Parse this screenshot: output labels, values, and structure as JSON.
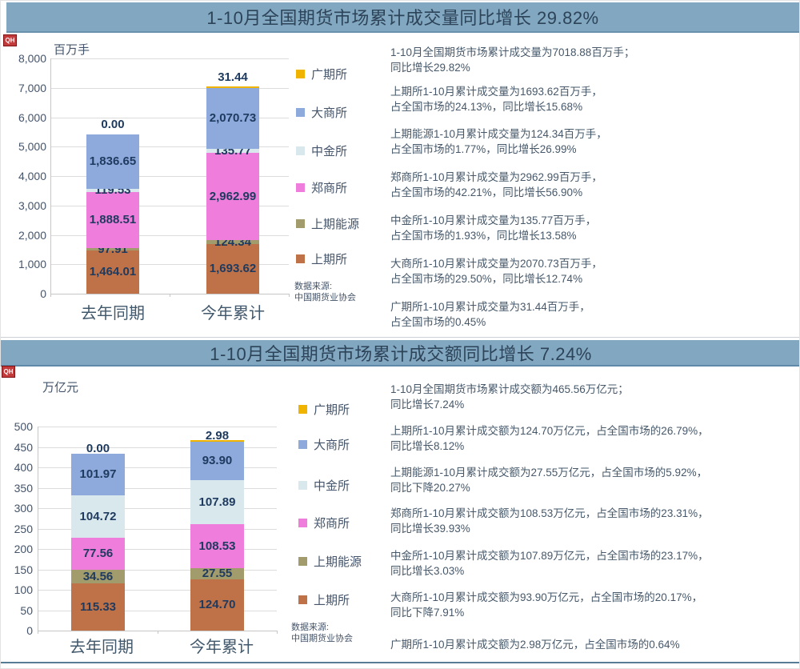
{
  "badge_label": "QH",
  "sections": [
    {
      "title": "1-10月全国期货市场累计成交量同比增长 29.82%",
      "source": "数据来源:\n中国期货业协会",
      "paragraphs": [
        "1-10月全国期货市场累计成交量为7018.88百万手；\n同比增长29.82%",
        "上期所1-10月累计成交量为1693.62百万手，\n占全国市场的24.13%，同比增长15.68%",
        "上期能源1-10月累计成交量为124.34百万手，\n占全国市场的1.77%，同比增长26.99%",
        "郑商所1-10月累计成交量为2962.99百万手，\n占全国市场的42.21%，同比增长56.90%",
        "中金所1-10月累计成交量为135.77百万手，\n占全国市场的1.93%，同比增长13.58%",
        "大商所1-10月累计成交量为2070.73百万手，\n占全国市场的29.50%，同比增长12.74%",
        "广期所1-10月累计成交量为31.44百万手，\n占全国市场的0.45%"
      ]
    },
    {
      "title": "1-10月全国期货市场累计成交额同比增长 7.24%",
      "source": "数据来源:\n中国期货业协会",
      "paragraphs": [
        "1-10月全国期货市场累计成交额为465.56万亿元；\n同比增长7.24%",
        "上期所1-10月累计成交额为124.70万亿元，占全国市场的26.79%，\n同比增长8.12%",
        "上期能源1-10月累计成交额为27.55万亿元，占全国市场的5.92%，\n同比下降20.27%",
        "郑商所1-10月累计成交额为108.53万亿元，占全国市场的23.31%，\n同比增长39.93%",
        "中金所1-10月累计成交额为107.89万亿元，占全国市场的23.17%，\n同比增长3.03%",
        "大商所1-10月累计成交额为93.90万亿元，占全国市场的20.17%，\n同比下降7.91%",
        "广期所1-10月累计成交额为2.98万亿元，占全国市场的0.64%"
      ]
    }
  ],
  "chart_data": [
    {
      "type": "bar",
      "stacked": true,
      "title": "1-10月全国期货市场累计成交量同比增长 29.82%",
      "ylabel": "百万手",
      "categories": [
        "去年同期",
        "今年累计"
      ],
      "series": [
        {
          "id": "shfe",
          "name": "上期所",
          "color": "#bf7248",
          "values": [
            1464.01,
            1693.62
          ]
        },
        {
          "id": "ine",
          "name": "上期能源",
          "color": "#a29b6c",
          "values": [
            97.91,
            124.34
          ]
        },
        {
          "id": "czce",
          "name": "郑商所",
          "color": "#ee7ddb",
          "values": [
            1888.51,
            2962.99
          ]
        },
        {
          "id": "cffex",
          "name": "中金所",
          "color": "#d9e8ec",
          "values": [
            119.53,
            135.77
          ]
        },
        {
          "id": "dce",
          "name": "大商所",
          "color": "#8ea9db",
          "values": [
            1836.65,
            2070.73
          ]
        },
        {
          "id": "gfex",
          "name": "广期所",
          "color": "#f0b400",
          "values": [
            0.0,
            31.44
          ]
        }
      ],
      "totals": [
        5406.61,
        7018.88
      ],
      "ylim": [
        0,
        8000
      ],
      "ytick_step": 1000,
      "grid": true,
      "legend_position": "right"
    },
    {
      "type": "bar",
      "stacked": true,
      "title": "1-10月全国期货市场累计成交额同比增长 7.24%",
      "ylabel": "万亿元",
      "categories": [
        "去年同期",
        "今年累计"
      ],
      "series": [
        {
          "id": "shfe",
          "name": "上期所",
          "color": "#bf7248",
          "values": [
            115.33,
            124.7
          ]
        },
        {
          "id": "ine",
          "name": "上期能源",
          "color": "#a29b6c",
          "values": [
            34.56,
            27.55
          ]
        },
        {
          "id": "czce",
          "name": "郑商所",
          "color": "#ee7ddb",
          "values": [
            77.56,
            108.53
          ]
        },
        {
          "id": "cffex",
          "name": "中金所",
          "color": "#d9e8ec",
          "values": [
            104.72,
            107.89
          ]
        },
        {
          "id": "dce",
          "name": "大商所",
          "color": "#8ea9db",
          "values": [
            101.97,
            93.9
          ]
        },
        {
          "id": "gfex",
          "name": "广期所",
          "color": "#f0b400",
          "values": [
            0.0,
            2.98
          ]
        }
      ],
      "totals": [
        434.14,
        465.55
      ],
      "ylim": [
        0,
        500
      ],
      "ytick_step": 50,
      "grid": true,
      "legend_position": "right"
    }
  ]
}
